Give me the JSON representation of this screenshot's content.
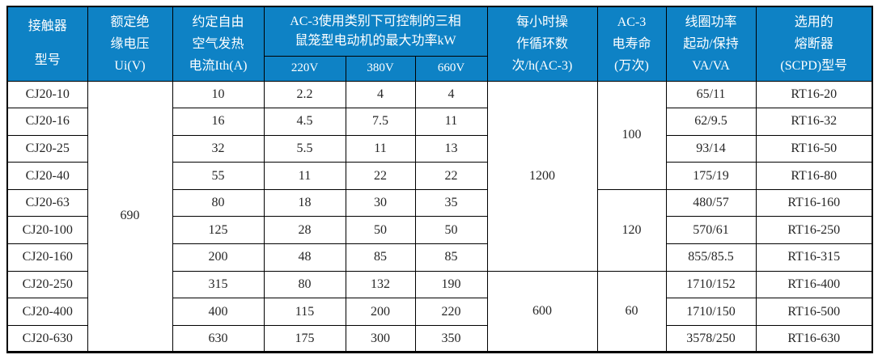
{
  "table": {
    "header": {
      "model": [
        "接触器",
        "型号"
      ],
      "insulation_voltage": [
        "额定绝",
        "缘电压",
        "Ui(V)"
      ],
      "thermal_current": [
        "约定自由",
        "空气发热",
        "电流Ith(A)"
      ],
      "ac3_power": [
        "AC-3使用类别下可控制的三相",
        "鼠笼型电动机的最大功率kW"
      ],
      "voltage_cols": [
        "220V",
        "380V",
        "660V"
      ],
      "cycles": [
        "每小时操",
        "作循环数",
        "次/h(AC-3)"
      ],
      "electrical_life": [
        "AC-3",
        "电寿命",
        "(万次)"
      ],
      "coil_power": [
        "线圈功率",
        "起动/保持",
        "VA/VA"
      ],
      "fuse": [
        "选用的",
        "熔断器",
        "(SCPD)型号"
      ]
    },
    "body": {
      "insulation_voltage_value": "690",
      "rows": [
        {
          "model": "CJ20-10",
          "ith": "10",
          "p220": "2.2",
          "p380": "4",
          "p660": "4",
          "coil": "65/11",
          "fuse": "RT16-20"
        },
        {
          "model": "CJ20-16",
          "ith": "16",
          "p220": "4.5",
          "p380": "7.5",
          "p660": "11",
          "coil": "62/9.5",
          "fuse": "RT16-32"
        },
        {
          "model": "CJ20-25",
          "ith": "32",
          "p220": "5.5",
          "p380": "11",
          "p660": "13",
          "coil": "93/14",
          "fuse": "RT16-50"
        },
        {
          "model": "CJ20-40",
          "ith": "55",
          "p220": "11",
          "p380": "22",
          "p660": "22",
          "coil": "175/19",
          "fuse": "RT16-80"
        },
        {
          "model": "CJ20-63",
          "ith": "80",
          "p220": "18",
          "p380": "30",
          "p660": "35",
          "coil": "480/57",
          "fuse": "RT16-160"
        },
        {
          "model": "CJ20-100",
          "ith": "125",
          "p220": "28",
          "p380": "50",
          "p660": "50",
          "coil": "570/61",
          "fuse": "RT16-250"
        },
        {
          "model": "CJ20-160",
          "ith": "200",
          "p220": "48",
          "p380": "85",
          "p660": "85",
          "coil": "855/85.5",
          "fuse": "RT16-315"
        },
        {
          "model": "CJ20-250",
          "ith": "315",
          "p220": "80",
          "p380": "132",
          "p660": "190",
          "coil": "1710/152",
          "fuse": "RT16-400"
        },
        {
          "model": "CJ20-400",
          "ith": "400",
          "p220": "115",
          "p380": "200",
          "p660": "220",
          "coil": "1710/150",
          "fuse": "RT16-500"
        },
        {
          "model": "CJ20-630",
          "ith": "630",
          "p220": "175",
          "p380": "300",
          "p660": "350",
          "coil": "3578/250",
          "fuse": "RT16-630"
        }
      ],
      "cycles_groups": [
        {
          "value": "1200",
          "rows": 7
        },
        {
          "value": "600",
          "rows": 3
        }
      ],
      "life_groups": [
        {
          "value": "100",
          "rows": 4
        },
        {
          "value": "120",
          "rows": 3
        },
        {
          "value": "60",
          "rows": 3
        }
      ]
    },
    "colors": {
      "header_bg": "#0e82c5",
      "header_text": "#ffffff",
      "border": "#000000",
      "cell_text": "#262626",
      "background": "#ffffff"
    }
  }
}
